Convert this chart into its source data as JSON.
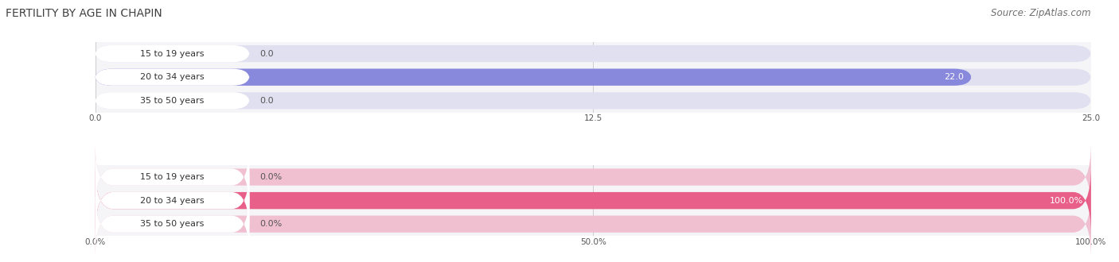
{
  "title": "FERTILITY BY AGE IN CHAPIN",
  "source": "Source: ZipAtlas.com",
  "top_chart": {
    "categories": [
      "15 to 19 years",
      "20 to 34 years",
      "35 to 50 years"
    ],
    "values": [
      0.0,
      22.0,
      0.0
    ],
    "xlim": [
      0,
      25.0
    ],
    "xticks": [
      0.0,
      12.5,
      25.0
    ],
    "xticklabels": [
      "0.0",
      "12.5",
      "25.0"
    ],
    "bar_color": "#8888dd",
    "bar_bg_color": "#e0e0f0",
    "bar_label_color_inside": "#ffffff",
    "bar_label_color_outside": "#555555",
    "label_value_threshold": 5.0
  },
  "bottom_chart": {
    "categories": [
      "15 to 19 years",
      "20 to 34 years",
      "35 to 50 years"
    ],
    "values": [
      0.0,
      100.0,
      0.0
    ],
    "xlim": [
      0,
      100.0
    ],
    "xticks": [
      0.0,
      50.0,
      100.0
    ],
    "xticklabels": [
      "0.0%",
      "50.0%",
      "100.0%"
    ],
    "bar_color": "#e8608a",
    "bar_bg_color": "#f0c0d0",
    "bar_label_color_inside": "#ffffff",
    "bar_label_color_outside": "#555555",
    "label_value_threshold": 20.0
  },
  "fig_bg_color": "#ffffff",
  "chart_bg_color": "#f5f5f8",
  "category_label_color": "#333333",
  "title_color": "#404040",
  "source_color": "#707070",
  "title_fontsize": 10,
  "source_fontsize": 8.5,
  "category_fontsize": 8,
  "value_fontsize": 8,
  "tick_fontsize": 7.5,
  "bar_height": 0.72,
  "grid_color": "#cccccc"
}
